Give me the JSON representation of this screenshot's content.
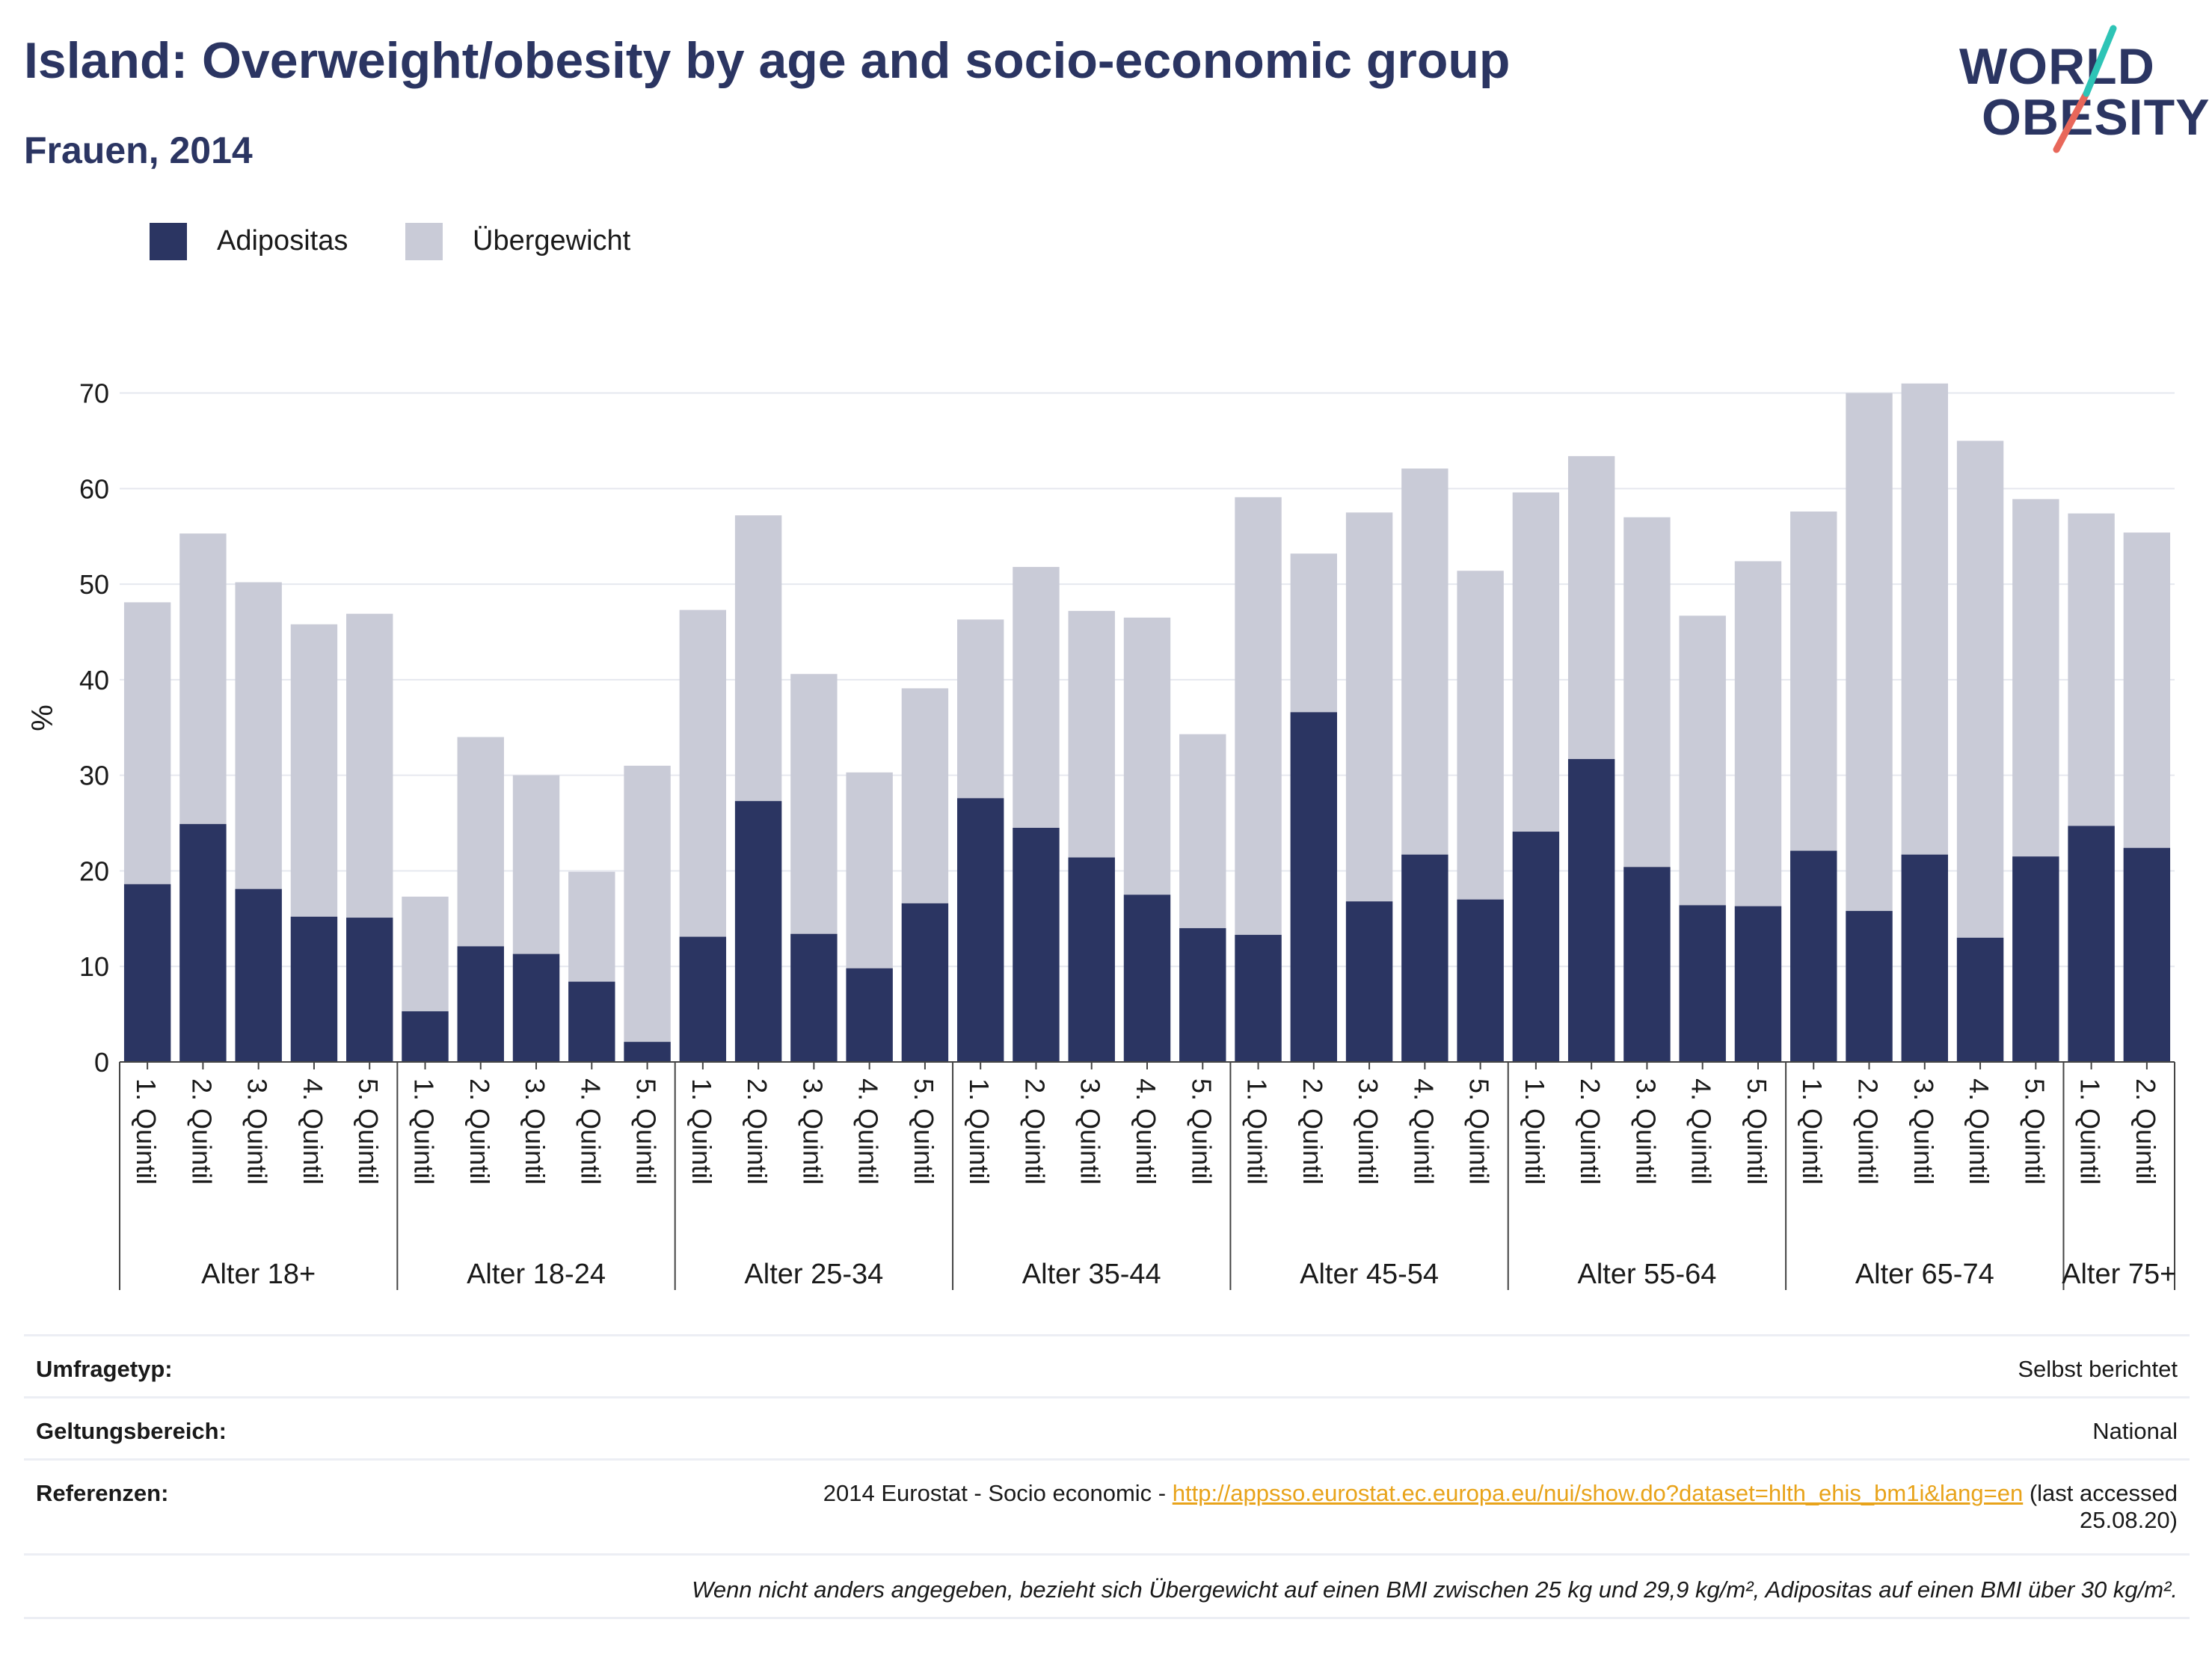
{
  "title": "Island: Overweight/obesity by age and socio-economic group",
  "subtitle": "Frauen, 2014",
  "logo": {
    "line1": "WORLD",
    "line2": "OBESITY",
    "slash_color_top": "#2ec4b6",
    "slash_color_bottom": "#e8675a"
  },
  "legend": [
    {
      "label": "Adipositas",
      "color": "#2b3562"
    },
    {
      "label": "Übergewicht",
      "color": "#c9cbd7"
    }
  ],
  "chart_data": {
    "type": "bar",
    "stacked": "overlay",
    "ylabel": "%",
    "ylim": [
      0,
      72
    ],
    "yticks": [
      0,
      10,
      20,
      30,
      40,
      50,
      60,
      70
    ],
    "grid": true,
    "legend_position": "top-left",
    "groups": [
      {
        "label": "Alter 18+",
        "categories": [
          "1. Quintil",
          "2. Quintil",
          "3. Quintil",
          "4. Quintil",
          "5. Quintil"
        ]
      },
      {
        "label": "Alter 18-24",
        "categories": [
          "1. Quintil",
          "2. Quintil",
          "3. Quintil",
          "4. Quintil",
          "5. Quintil"
        ]
      },
      {
        "label": "Alter 25-34",
        "categories": [
          "1. Quintil",
          "2. Quintil",
          "3. Quintil",
          "4. Quintil",
          "5. Quintil"
        ]
      },
      {
        "label": "Alter 35-44",
        "categories": [
          "1. Quintil",
          "2. Quintil",
          "3. Quintil",
          "4. Quintil",
          "5. Quintil"
        ]
      },
      {
        "label": "Alter 45-54",
        "categories": [
          "1. Quintil",
          "2. Quintil",
          "3. Quintil",
          "4. Quintil",
          "5. Quintil"
        ]
      },
      {
        "label": "Alter 55-64",
        "categories": [
          "1. Quintil",
          "2. Quintil",
          "3. Quintil",
          "4. Quintil",
          "5. Quintil"
        ]
      },
      {
        "label": "Alter 65-74",
        "categories": [
          "1. Quintil",
          "2. Quintil",
          "3. Quintil",
          "4. Quintil",
          "5. Quintil"
        ]
      },
      {
        "label": "Alter 75+",
        "categories": [
          "1. Quintil",
          "2. Quintil"
        ]
      }
    ],
    "series": [
      {
        "name": "Übergewicht",
        "color": "#c9cbd7",
        "values": [
          48.1,
          55.3,
          50.2,
          45.8,
          46.9,
          17.3,
          34.0,
          30.0,
          19.9,
          31.0,
          47.3,
          57.2,
          40.6,
          30.3,
          39.1,
          46.3,
          51.8,
          47.2,
          46.5,
          34.3,
          59.1,
          53.2,
          57.5,
          62.1,
          51.4,
          59.6,
          63.4,
          57.0,
          46.7,
          52.4,
          57.6,
          70.0,
          71.0,
          65.0,
          58.9,
          57.4,
          55.4
        ]
      },
      {
        "name": "Adipositas",
        "color": "#2b3562",
        "values": [
          18.6,
          24.9,
          18.1,
          15.2,
          15.1,
          5.3,
          12.1,
          11.3,
          8.4,
          2.1,
          13.1,
          27.3,
          13.4,
          9.8,
          16.6,
          27.6,
          24.5,
          21.4,
          17.5,
          14.0,
          13.3,
          36.6,
          16.8,
          21.7,
          17.0,
          24.1,
          31.7,
          20.4,
          16.4,
          16.3,
          22.1,
          15.8,
          21.7,
          13.0,
          21.5,
          24.7,
          22.4
        ]
      }
    ]
  },
  "footer": {
    "rows": [
      {
        "label": "Umfragetyp:",
        "value": "Selbst berichtet"
      },
      {
        "label": "Geltungsbereich:",
        "value": "National"
      },
      {
        "label": "Referenzen:",
        "value_prefix": "2014 Eurostat - Socio economic - ",
        "link": "http://appsso.eurostat.ec.europa.eu/nui/show.do?dataset=hlth_ehis_bm1i&lang=en",
        "value_suffix": " (last accessed",
        "value_line2": "25.08.20)"
      }
    ],
    "note": "Wenn nicht anders angegeben, bezieht sich Übergewicht auf einen BMI zwischen 25 kg und 29,9 kg/m², Adipositas auf einen BMI über 30 kg/m²."
  }
}
